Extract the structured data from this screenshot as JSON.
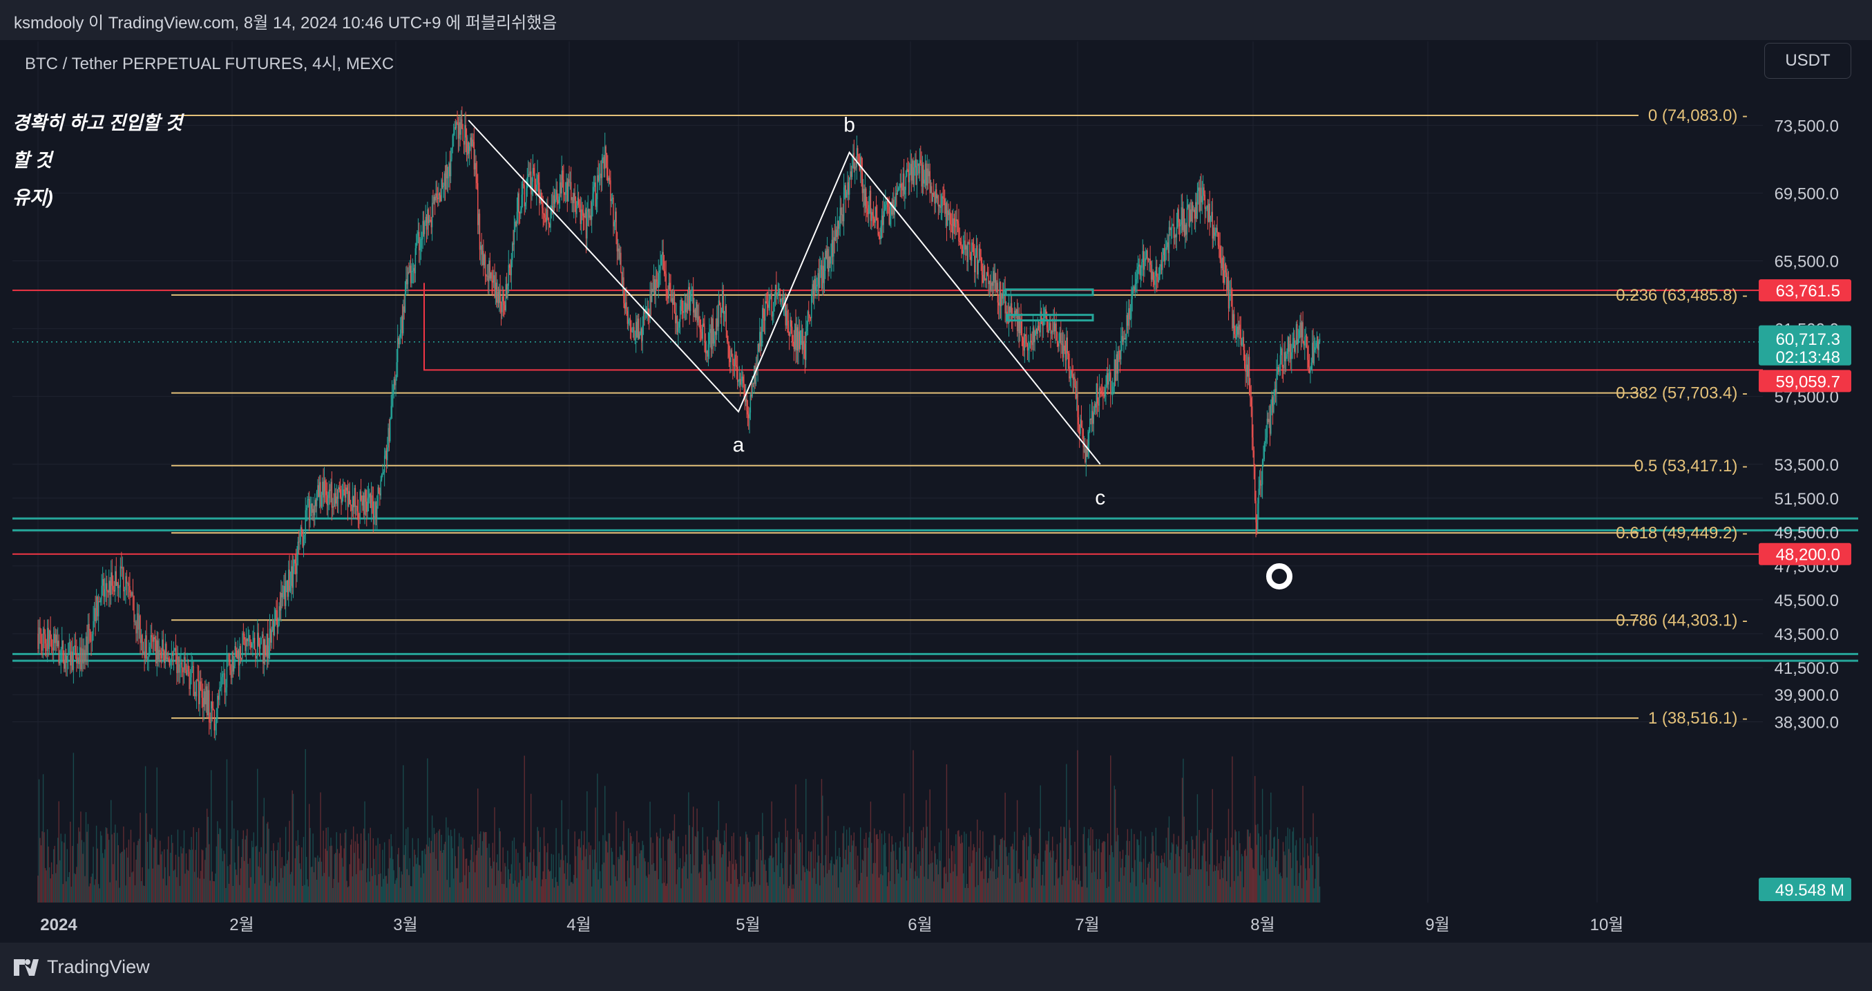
{
  "header": {
    "published_line": "ksmdooly 이 TradingView.com, 8월 14, 2024 10:46 UTC+9 에 퍼블리쉬했음"
  },
  "chart": {
    "symbol_label": "BTC / Tether PERPETUAL FUTURES, 4시, MEXC",
    "currency_button": "USDT",
    "notes": [
      "경확히 하고 진입할 것",
      "할 것",
      "유지)"
    ],
    "wave_labels": {
      "a": "a",
      "b": "b",
      "c": "c"
    },
    "colors": {
      "background": "#131722",
      "fib": "#e5c27a",
      "support": "#26a69a",
      "resistance": "#f23645",
      "up": "#26a69a",
      "down": "#ef5350"
    }
  },
  "chart_data": {
    "type": "candlestick",
    "title": "BTC / Tether PERPETUAL FUTURES, 4시, MEXC",
    "x_tick_labels": [
      "2024",
      "2월",
      "3월",
      "4월",
      "5월",
      "6월",
      "7월",
      "8월",
      "9월",
      "10월"
    ],
    "y_tick_labels": [
      "73,500.0",
      "69,500.0",
      "65,500.0",
      "61,500.0",
      "57,500.0",
      "53,500.0",
      "51,500.0",
      "49,500.0",
      "47,500.0",
      "45,500.0",
      "43,500.0",
      "41,500.0",
      "39,900.0",
      "38,300.0"
    ],
    "fib_levels": [
      {
        "label": "0 (74,083.0)",
        "ratio": 0,
        "price": 74083.0
      },
      {
        "label": "0.236 (63,485.8)",
        "ratio": 0.236,
        "price": 63485.8
      },
      {
        "label": "0.382 (57,703.4)",
        "ratio": 0.382,
        "price": 57703.4
      },
      {
        "label": "0.5 (53,417.1)",
        "ratio": 0.5,
        "price": 53417.1
      },
      {
        "label": "0.618 (49,449.2)",
        "ratio": 0.618,
        "price": 49449.2
      },
      {
        "label": "0.786 (44,303.1)",
        "ratio": 0.786,
        "price": 44303.1
      },
      {
        "label": "1 (38,516.1)",
        "ratio": 1,
        "price": 38516.1
      }
    ],
    "price_badges": [
      {
        "label": "63,761.5",
        "price": 63761.5,
        "color": "#f23645"
      },
      {
        "label": "60,717.3",
        "price": 60717.3,
        "color": "#26a69a"
      },
      {
        "label": "02:13:48",
        "price": 60717.3,
        "color": "#26a69a"
      },
      {
        "label": "59,059.7",
        "price": 59059.7,
        "color": "#f23645"
      },
      {
        "label": "48,200.0",
        "price": 48200.0,
        "color": "#f23645"
      }
    ],
    "volume_badge": "49.548 M",
    "wave_points": [
      {
        "label": "",
        "date": "2024-03-14",
        "price": 73800
      },
      {
        "label": "a",
        "date": "2024-05-01",
        "price": 56600
      },
      {
        "label": "b",
        "date": "2024-05-21",
        "price": 71900
      },
      {
        "label": "c",
        "date": "2024-07-05",
        "price": 53500
      }
    ],
    "last_price": 60717.3,
    "x_range": [
      "2024-01-01",
      "2024-10-31"
    ],
    "y_range": [
      37500,
      75000
    ]
  }
}
